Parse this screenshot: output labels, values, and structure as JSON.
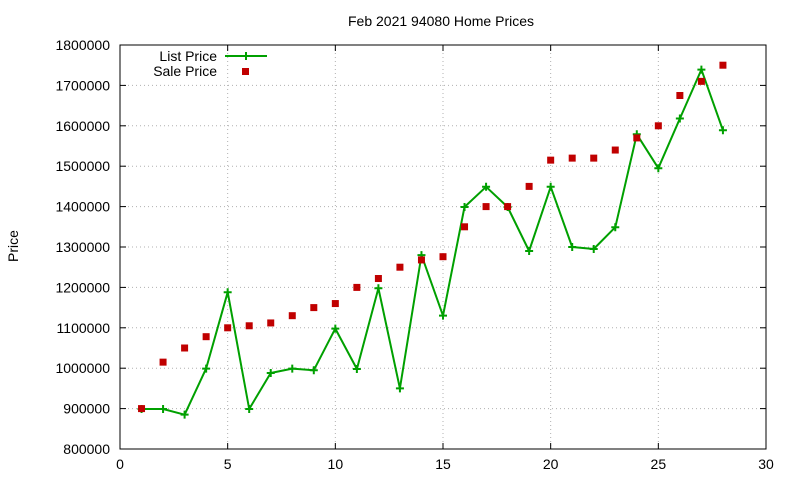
{
  "chart_data": {
    "type": "line",
    "title": "Feb 2021 94080 Home Prices",
    "xlabel": "",
    "ylabel": "Price",
    "xlim": [
      0,
      30
    ],
    "ylim": [
      800000,
      1800000
    ],
    "x_ticks": [
      "0",
      "5",
      "10",
      "15",
      "20",
      "25",
      "30"
    ],
    "y_ticks": [
      "800000",
      "900000",
      "1000000",
      "1100000",
      "1200000",
      "1300000",
      "1400000",
      "1500000",
      "1600000",
      "1700000",
      "1800000"
    ],
    "grid": true,
    "legend_position": "top-left",
    "series": [
      {
        "name": "List Price",
        "style": "line-with-plus-markers",
        "color": "#00a000",
        "x": [
          1,
          2,
          3,
          4,
          5,
          6,
          7,
          8,
          9,
          10,
          11,
          12,
          13,
          14,
          15,
          16,
          17,
          18,
          19,
          20,
          21,
          22,
          23,
          24,
          25,
          26,
          27,
          28
        ],
        "values": [
          899000,
          899000,
          885000,
          999000,
          1188000,
          899000,
          988000,
          999000,
          995000,
          1098000,
          998000,
          1198000,
          950000,
          1280000,
          1130000,
          1399000,
          1449000,
          1399000,
          1290000,
          1449000,
          1300000,
          1295000,
          1349000,
          1579000,
          1495000,
          1618000,
          1739000,
          1589000
        ]
      },
      {
        "name": "Sale Price",
        "style": "square-markers",
        "color": "#c00000",
        "x": [
          1,
          2,
          3,
          4,
          5,
          6,
          7,
          8,
          9,
          10,
          11,
          12,
          13,
          14,
          15,
          16,
          17,
          18,
          19,
          20,
          21,
          22,
          23,
          24,
          25,
          26,
          27,
          28
        ],
        "values": [
          900000,
          1015000,
          1050000,
          1078000,
          1100000,
          1105000,
          1112000,
          1130000,
          1150000,
          1160000,
          1200000,
          1222000,
          1250000,
          1268000,
          1276000,
          1350000,
          1400000,
          1400000,
          1450000,
          1515000,
          1520000,
          1520000,
          1540000,
          1570000,
          1600000,
          1675000,
          1710000,
          1750000
        ]
      }
    ]
  }
}
